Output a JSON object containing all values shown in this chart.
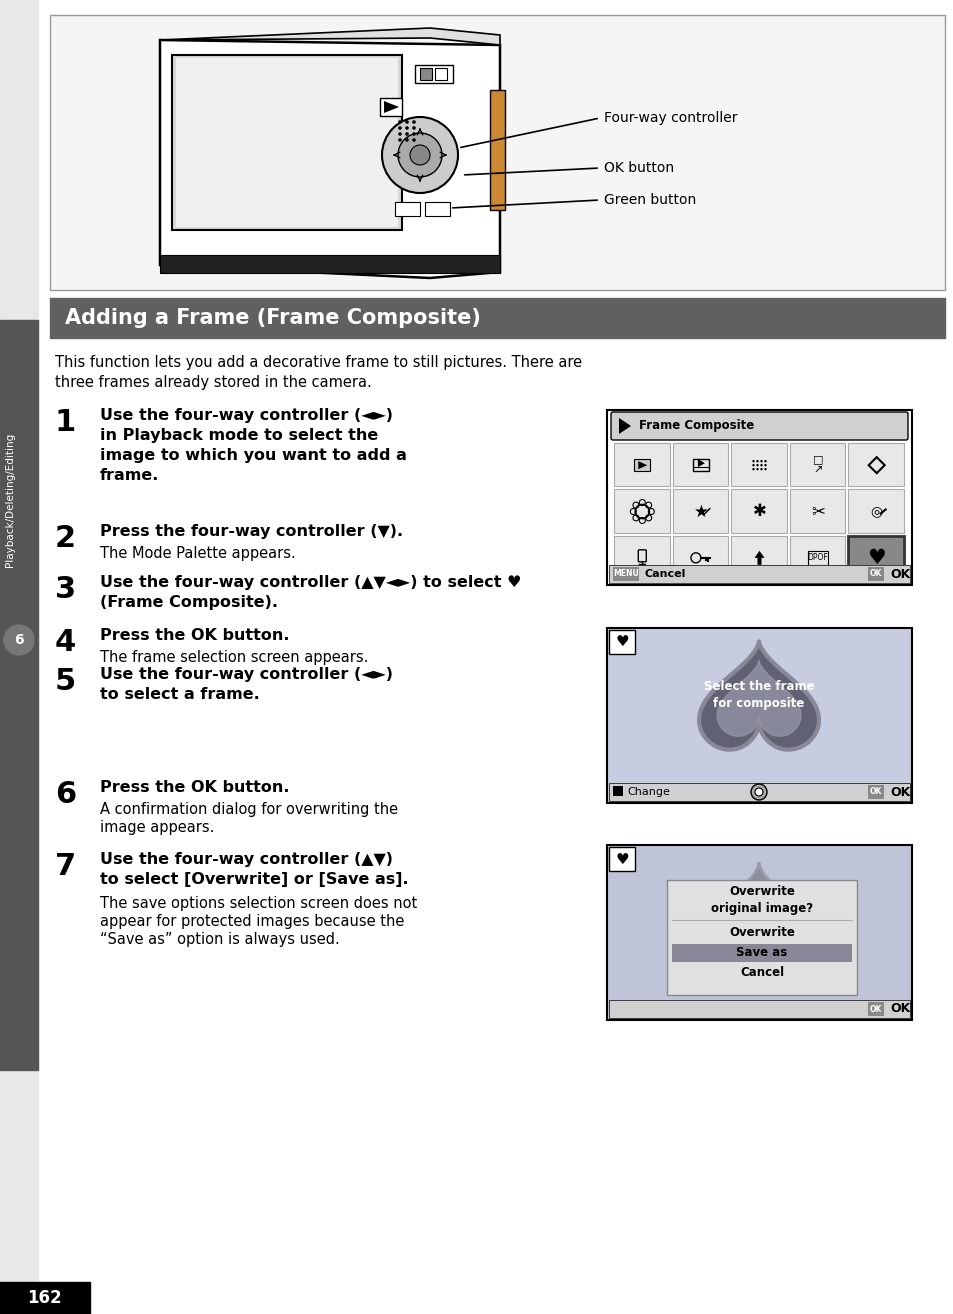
{
  "page_bg": "#ffffff",
  "sidebar_bg": "#555555",
  "header_bg": "#606060",
  "header_text": "Adding a Frame (Frame Composite)",
  "header_text_color": "#ffffff",
  "page_number": "162",
  "chapter_number": "6",
  "chapter_label": "Playback/Deleting/Editing",
  "intro_text1": "This function lets you add a decorative frame to still pictures. There are",
  "intro_text2": "three frames already stored in the camera.",
  "step1_bold1": "Use the four-way controller (◄►)",
  "step1_bold2": "in Playback mode to select the",
  "step1_bold3": "image to which you want to add a",
  "step1_bold4": "frame.",
  "step2_bold": "Press the four-way controller (▼).",
  "step2_sub": "The Mode Palette appears.",
  "step3_bold1": "Use the four-way controller (▲▼◄►) to select ♥",
  "step3_bold2": "(Frame Composite).",
  "step4_bold": "Press the OK button.",
  "step4_sub": "The frame selection screen appears.",
  "step5_bold1": "Use the four-way controller (◄►)",
  "step5_bold2": "to select a frame.",
  "step6_bold": "Press the OK button.",
  "step6_sub1": "A confirmation dialog for overwriting the",
  "step6_sub2": "image appears.",
  "step7_bold1": "Use the four-way controller (▲▼)",
  "step7_bold2": "to select [Overwrite] or [Save as].",
  "step7_sub1": "The save options selection screen does not",
  "step7_sub2": "appear for protected images because the",
  "step7_sub3": "“Save as” option is always used.",
  "label_fourway": "Four-way controller",
  "label_ok": "OK button",
  "label_green": "Green button"
}
